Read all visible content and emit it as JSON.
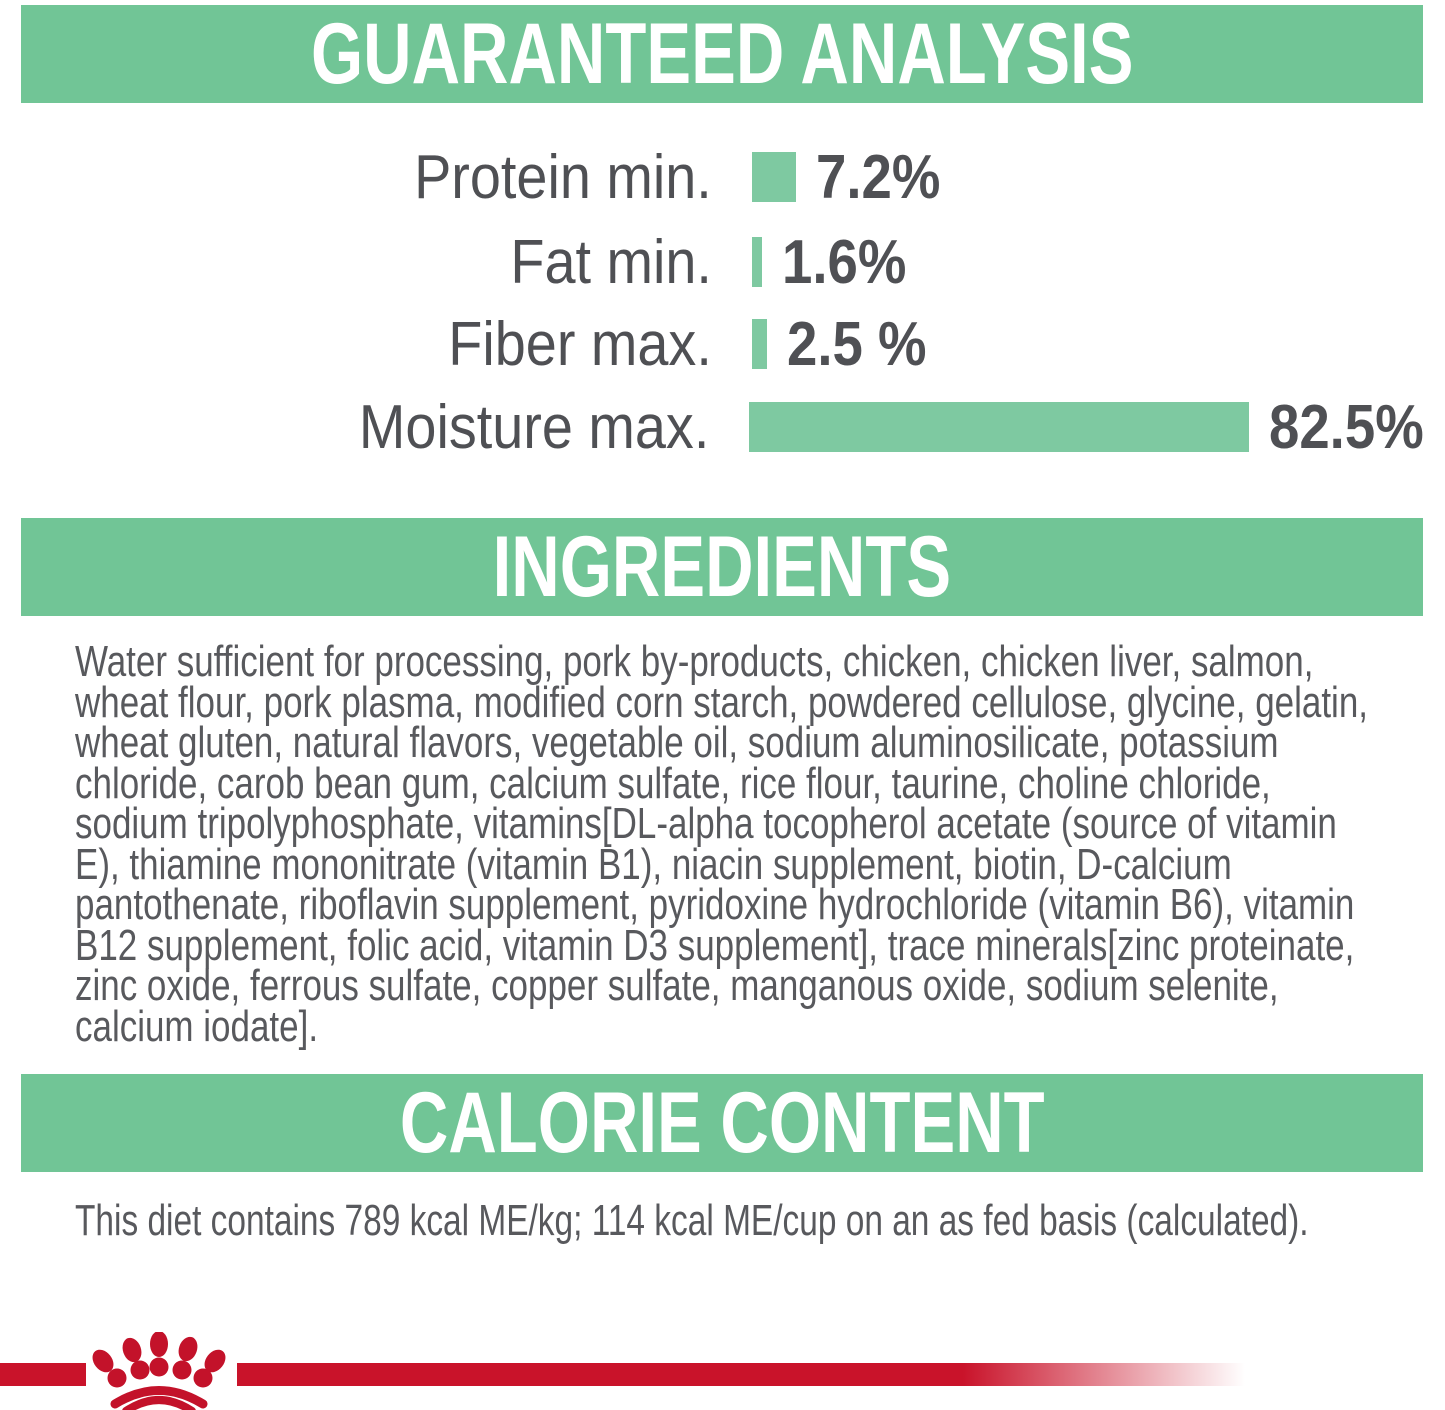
{
  "sections": {
    "guaranteed_analysis": {
      "title": "GUARANTEED ANALYSIS",
      "rows": [
        {
          "label": "Protein min.",
          "value": "7.2%"
        },
        {
          "label": "Fat min.",
          "value": "1.6%"
        },
        {
          "label": "Fiber max.",
          "value": "2.5 %"
        },
        {
          "label": "Moisture max.",
          "value": "82.5%"
        }
      ]
    },
    "ingredients": {
      "title": "INGREDIENTS",
      "text": "Water sufficient for processing, pork by-products, chicken, chicken liver, salmon, wheat flour, pork plasma, modified corn starch, powdered cellulose, glycine, gelatin, wheat gluten, natural flavors, vegetable oil, sodium aluminosilicate, potassium chloride, carob bean gum, calcium sulfate, rice flour, taurine, choline chloride, sodium tripolyphosphate, vitamins[DL-alpha tocopherol acetate (source of vitamin E), thiamine mononitrate (vitamin B1), niacin supplement, biotin, D-calcium pantothenate, riboflavin supplement, pyridoxine hydrochloride (vitamin B6), vitamin B12 supplement, folic acid, vitamin D3 supplement], trace minerals[zinc proteinate, zinc oxide, ferrous sulfate, copper sulfate, manganous oxide, sodium selenite, calcium iodate]."
    },
    "calorie_content": {
      "title": "CALORIE CONTENT",
      "text": "This diet contains 789 kcal ME/kg; 114 kcal ME/cup on an as fed basis (calculated)."
    }
  },
  "chart_data": {
    "type": "bar",
    "orientation": "horizontal",
    "categories": [
      "Protein min.",
      "Fat min.",
      "Fiber max.",
      "Moisture max."
    ],
    "values": [
      7.2,
      1.6,
      2.5,
      82.5
    ],
    "value_labels": [
      "7.2%",
      "1.6%",
      "2.5 %",
      "82.5%"
    ],
    "unit": "%",
    "xlim": [
      0,
      85
    ],
    "bar_color": "#7ec9a1",
    "legend": "none",
    "grid": false
  },
  "colors": {
    "banner_green": "#71c596",
    "bar_green": "#7ec9a1",
    "heading_text": "#ffffff",
    "chart_text": "#4f5054",
    "body_text": "#58595d",
    "brand_red": "#c9132a",
    "background": "#ffffff"
  },
  "brand": {
    "logo_name": "royal-canin-crown-paw-logo"
  }
}
